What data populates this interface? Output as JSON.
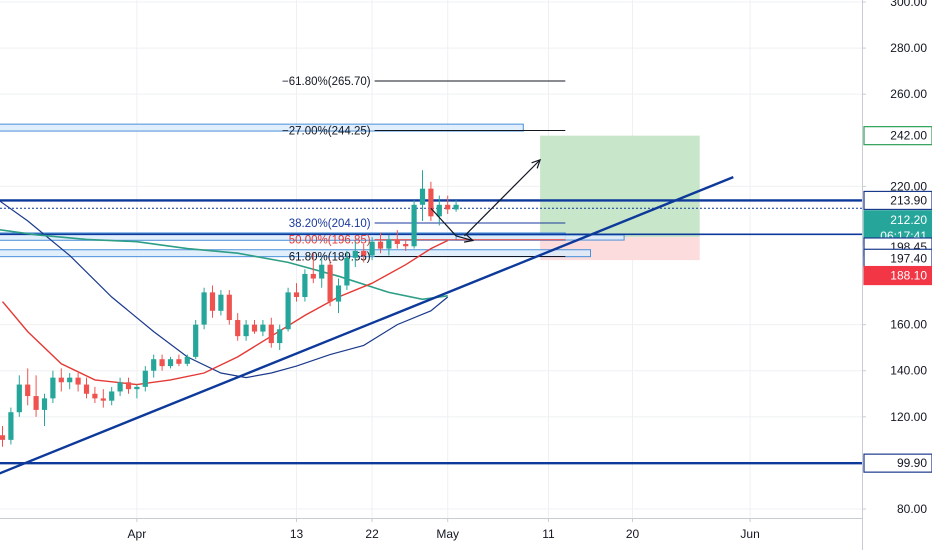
{
  "colors": {
    "background": "#ffffff",
    "grid": "#eef0f3",
    "axis_line": "#c9ccd3",
    "candle_up": "#26a69a",
    "candle_down": "#ef5350",
    "trend_line": "#0d3a9a",
    "horizontal_level": "#0d3a9a",
    "ma_red": "#e53935",
    "ma_teal": "#2e9e87",
    "ma_navy": "#1b3a8c",
    "zone_fill": "#dcebfa",
    "zone_border": "#4a90d9",
    "target_zone": "#c8e6c9",
    "stop_zone": "#fcdcdc"
  },
  "chart_data": {
    "type": "candlestick",
    "price_axis": {
      "ticks": [
        "300.00",
        "280.00",
        "260.00",
        "242.00",
        "220.00",
        "213.90",
        "212.20",
        "06:17:41",
        "198.45",
        "197.40",
        "188.10",
        "160.00",
        "140.00",
        "120.00",
        "99.90",
        "80.00"
      ],
      "plain_ticks": [
        300,
        280,
        260,
        220,
        160,
        140,
        120,
        80
      ],
      "ylim": [
        73,
        305
      ],
      "badges": [
        {
          "label": "242.00",
          "value": 242.0,
          "style": "outline-green"
        },
        {
          "label": "213.90",
          "value": 213.9,
          "style": "outline-navy"
        },
        {
          "label": "212.20",
          "value": 205.5,
          "style": "teal",
          "sub": "06:17:41",
          "sub_value": 201.0
        },
        {
          "label": "198.45",
          "value": 193.7,
          "style": "outline-navy"
        },
        {
          "label": "197.40",
          "value": 188.8,
          "style": "outline-navy"
        },
        {
          "label": "188.10",
          "value": 181.3,
          "style": "red"
        },
        {
          "label": "99.90",
          "value": 99.9,
          "style": "outline-navy"
        }
      ]
    },
    "time_axis": {
      "labels": [
        "Apr",
        "13",
        "22",
        "May",
        "11",
        "20",
        "Jun"
      ],
      "label_bars": [
        16,
        35,
        44,
        53,
        65,
        75,
        89
      ]
    },
    "fibonacci_levels": [
      {
        "label": "−61.80%(265.70)",
        "value": 265.7,
        "color": "#131722"
      },
      {
        "label": "−27.00%(244.25)",
        "value": 244.25,
        "color": "#131722"
      },
      {
        "label": "38.20%(204.10)",
        "value": 204.1,
        "color": "#1a3a9c"
      },
      {
        "label": "50.00%(196.85)",
        "value": 196.85,
        "color": "#e53935"
      },
      {
        "label": "61.80%(189.55)",
        "value": 189.55,
        "color": "#131722"
      }
    ],
    "horizontal_levels": [
      213.9,
      199.2,
      99.9
    ],
    "trend_line": {
      "from": {
        "bar": -2,
        "value": 93
      },
      "to": {
        "bar": 87,
        "value": 224
      }
    },
    "candles": [
      {
        "o": 112,
        "h": 116,
        "l": 107,
        "c": 110
      },
      {
        "o": 110,
        "h": 124,
        "l": 108,
        "c": 122
      },
      {
        "o": 122,
        "h": 138,
        "l": 120,
        "c": 134
      },
      {
        "o": 134,
        "h": 141,
        "l": 125,
        "c": 129
      },
      {
        "o": 129,
        "h": 138,
        "l": 120,
        "c": 123
      },
      {
        "o": 123,
        "h": 130,
        "l": 116,
        "c": 128
      },
      {
        "o": 128,
        "h": 140,
        "l": 126,
        "c": 137
      },
      {
        "o": 137,
        "h": 141,
        "l": 131,
        "c": 135
      },
      {
        "o": 135,
        "h": 139,
        "l": 132,
        "c": 137
      },
      {
        "o": 137,
        "h": 139,
        "l": 131,
        "c": 134
      },
      {
        "o": 134,
        "h": 137,
        "l": 128,
        "c": 130
      },
      {
        "o": 130,
        "h": 133,
        "l": 126,
        "c": 128
      },
      {
        "o": 128,
        "h": 132,
        "l": 124,
        "c": 127
      },
      {
        "o": 127,
        "h": 133,
        "l": 125,
        "c": 131
      },
      {
        "o": 131,
        "h": 137,
        "l": 129,
        "c": 135
      },
      {
        "o": 135,
        "h": 137,
        "l": 130,
        "c": 132
      },
      {
        "o": 132,
        "h": 134,
        "l": 128,
        "c": 133
      },
      {
        "o": 133,
        "h": 142,
        "l": 131,
        "c": 140
      },
      {
        "o": 140,
        "h": 147,
        "l": 137,
        "c": 145
      },
      {
        "o": 145,
        "h": 147,
        "l": 140,
        "c": 142
      },
      {
        "o": 142,
        "h": 146,
        "l": 141,
        "c": 145
      },
      {
        "o": 145,
        "h": 147,
        "l": 142,
        "c": 143
      },
      {
        "o": 143,
        "h": 147,
        "l": 142,
        "c": 146
      },
      {
        "o": 146,
        "h": 162,
        "l": 145,
        "c": 160
      },
      {
        "o": 160,
        "h": 176,
        "l": 158,
        "c": 174
      },
      {
        "o": 174,
        "h": 177,
        "l": 163,
        "c": 166
      },
      {
        "o": 166,
        "h": 175,
        "l": 164,
        "c": 173
      },
      {
        "o": 173,
        "h": 175,
        "l": 160,
        "c": 162
      },
      {
        "o": 162,
        "h": 165,
        "l": 153,
        "c": 155
      },
      {
        "o": 155,
        "h": 162,
        "l": 153,
        "c": 160
      },
      {
        "o": 160,
        "h": 162,
        "l": 156,
        "c": 157
      },
      {
        "o": 157,
        "h": 162,
        "l": 155,
        "c": 160
      },
      {
        "o": 160,
        "h": 163,
        "l": 150,
        "c": 152
      },
      {
        "o": 152,
        "h": 160,
        "l": 149,
        "c": 158
      },
      {
        "o": 158,
        "h": 176,
        "l": 157,
        "c": 174
      },
      {
        "o": 174,
        "h": 178,
        "l": 170,
        "c": 172
      },
      {
        "o": 172,
        "h": 184,
        "l": 170,
        "c": 182
      },
      {
        "o": 182,
        "h": 191,
        "l": 178,
        "c": 180
      },
      {
        "o": 180,
        "h": 189,
        "l": 176,
        "c": 186
      },
      {
        "o": 186,
        "h": 188,
        "l": 168,
        "c": 170
      },
      {
        "o": 170,
        "h": 180,
        "l": 165,
        "c": 177
      },
      {
        "o": 177,
        "h": 192,
        "l": 175,
        "c": 189
      },
      {
        "o": 189,
        "h": 196,
        "l": 185,
        "c": 192
      },
      {
        "o": 192,
        "h": 195,
        "l": 187,
        "c": 190
      },
      {
        "o": 190,
        "h": 198,
        "l": 188,
        "c": 196
      },
      {
        "o": 196,
        "h": 200,
        "l": 191,
        "c": 193
      },
      {
        "o": 193,
        "h": 199,
        "l": 190,
        "c": 197
      },
      {
        "o": 197,
        "h": 201,
        "l": 193,
        "c": 195
      },
      {
        "o": 195,
        "h": 197,
        "l": 192,
        "c": 194
      },
      {
        "o": 194,
        "h": 214,
        "l": 193,
        "c": 212
      },
      {
        "o": 212,
        "h": 227,
        "l": 205,
        "c": 219
      },
      {
        "o": 219,
        "h": 222,
        "l": 205,
        "c": 207
      },
      {
        "o": 207,
        "h": 216,
        "l": 203,
        "c": 212
      },
      {
        "o": 212,
        "h": 216,
        "l": 208,
        "c": 210
      },
      {
        "o": 210,
        "h": 214,
        "l": 209,
        "c": 212
      }
    ],
    "ma_red": [
      [
        0,
        170
      ],
      [
        3,
        157
      ],
      [
        7,
        143
      ],
      [
        11,
        136
      ],
      [
        16,
        134
      ],
      [
        20,
        136
      ],
      [
        24,
        139
      ],
      [
        28,
        146
      ],
      [
        32,
        155
      ],
      [
        36,
        164
      ],
      [
        40,
        172
      ],
      [
        44,
        178
      ],
      [
        48,
        186
      ],
      [
        51,
        193
      ],
      [
        53,
        196.5
      ]
    ],
    "ma_teal": [
      [
        -2,
        202
      ],
      [
        4,
        199
      ],
      [
        10,
        197
      ],
      [
        16,
        196
      ],
      [
        22,
        193
      ],
      [
        28,
        191
      ],
      [
        34,
        187
      ],
      [
        40,
        181
      ],
      [
        46,
        174
      ],
      [
        50,
        171
      ],
      [
        53,
        172.5
      ]
    ],
    "ma_navy": [
      [
        -2,
        218
      ],
      [
        3,
        205
      ],
      [
        8,
        190
      ],
      [
        13,
        172
      ],
      [
        18,
        157
      ],
      [
        22,
        146
      ],
      [
        26,
        139
      ],
      [
        29,
        137
      ],
      [
        32,
        139
      ],
      [
        35,
        142
      ],
      [
        39,
        147
      ],
      [
        43,
        151
      ],
      [
        47,
        160
      ],
      [
        51,
        166
      ],
      [
        53,
        172
      ]
    ],
    "zones": [
      {
        "from": -2,
        "to": 62,
        "top": 247,
        "bottom": 244
      },
      {
        "from": -2,
        "to": 67,
        "top": 199.8,
        "bottom": 196.6
      },
      {
        "from": 54,
        "to": 74,
        "top": 198.9,
        "bottom": 196.7
      },
      {
        "from": -2,
        "to": 70,
        "top": 192.5,
        "bottom": 189.5
      }
    ],
    "target_zone": {
      "from": 64,
      "to": 83,
      "top": 242,
      "bottom": 198
    },
    "stop_zone": {
      "from": 64,
      "to": 83,
      "top": 198,
      "bottom": 188
    },
    "arrows": [
      {
        "points": [
          [
            51,
            210.5
          ],
          [
            54,
            198.5
          ]
        ],
        "head": false
      },
      {
        "points": [
          [
            54,
            198.5
          ],
          [
            56,
            196.5
          ]
        ],
        "head": true
      },
      {
        "points": [
          [
            55,
            198.5
          ],
          [
            64,
            231.5
          ]
        ],
        "head": true
      }
    ]
  }
}
